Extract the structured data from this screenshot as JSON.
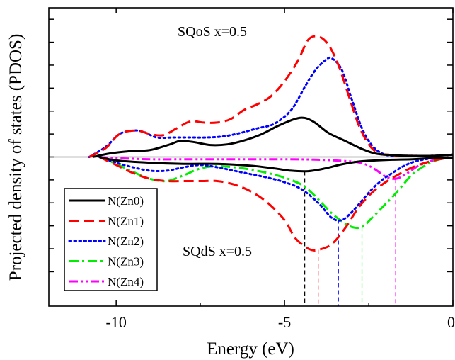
{
  "chart_data": {
    "type": "line",
    "xlabel": "Energy (eV)",
    "ylabel": "Projected density of states (PDOS)",
    "xlim": [
      -12,
      0
    ],
    "ylim": [
      -6.5,
      6.5
    ],
    "x_ticks": [
      -10,
      -5,
      0
    ],
    "x_tick_labels": [
      "-10",
      "-5",
      "0"
    ],
    "y_ticks": [
      -5,
      -4,
      -3,
      -2,
      -1,
      0,
      1,
      2,
      3,
      4,
      5,
      6
    ],
    "grid": false,
    "legend_position": "bottom-left",
    "annotations": [
      {
        "text": "SQoS x=0.5",
        "x": -6.7,
        "y": 5.1
      },
      {
        "text": "SQdS x=0.5",
        "x": -6.7,
        "y": -3.8
      }
    ],
    "series": [
      {
        "name": "N(Zn0)",
        "color": "#000000",
        "dash": "solid",
        "width": 3,
        "up": {
          "x": [
            -10.7,
            -10.2,
            -9.6,
            -9.0,
            -8.4,
            -8.1,
            -7.7,
            -7.2,
            -6.7,
            -6.2,
            -5.7,
            -5.2,
            -4.7,
            -4.4,
            -4.1,
            -3.7,
            -3.2,
            -2.7,
            -2.3,
            -1.8,
            -1.3,
            -0.6,
            0
          ],
          "y": [
            0.0,
            0.15,
            0.25,
            0.3,
            0.55,
            0.7,
            0.65,
            0.52,
            0.55,
            0.72,
            0.98,
            1.35,
            1.65,
            1.7,
            1.5,
            1.05,
            0.7,
            0.35,
            0.15,
            0.08,
            0.05,
            0.05,
            0.1
          ]
        },
        "down": {
          "x": [
            -10.5,
            -10.0,
            -9.0,
            -8.0,
            -7.0,
            -6.0,
            -5.3,
            -4.8,
            -4.3,
            -3.8,
            -3.3,
            -2.8,
            -2.3,
            -1.8,
            -1.2,
            -0.6,
            0
          ],
          "y": [
            0.0,
            -0.15,
            -0.25,
            -0.3,
            -0.3,
            -0.38,
            -0.5,
            -0.6,
            -0.62,
            -0.5,
            -0.32,
            -0.2,
            -0.15,
            -0.12,
            -0.1,
            -0.05,
            -0.05
          ]
        },
        "drop_x": -4.4
      },
      {
        "name": "N(Zn1)",
        "color": "#ff0000",
        "dash": "long-dash",
        "width": 3,
        "up": {
          "x": [
            -10.8,
            -10.3,
            -9.9,
            -9.4,
            -9.0,
            -8.6,
            -8.2,
            -7.8,
            -7.4,
            -7.0,
            -6.6,
            -6.2,
            -5.8,
            -5.4,
            -5.0,
            -4.6,
            -4.3,
            -4.0,
            -3.7,
            -3.4,
            -3.1,
            -2.8,
            -2.5,
            -2.2,
            -1.9,
            -1.6,
            -1.2,
            -0.6,
            0
          ],
          "y": [
            0.0,
            0.4,
            1.0,
            1.15,
            1.0,
            0.95,
            1.25,
            1.55,
            1.5,
            1.5,
            1.65,
            2.05,
            2.3,
            2.65,
            3.3,
            4.2,
            5.1,
            5.25,
            4.9,
            4.0,
            2.7,
            1.4,
            0.55,
            0.15,
            0.1,
            0.05,
            0.05,
            0.05,
            0.1
          ]
        },
        "down": {
          "x": [
            -10.5,
            -10.0,
            -9.5,
            -9.0,
            -8.5,
            -8.0,
            -7.5,
            -7.0,
            -6.5,
            -6.0,
            -5.5,
            -5.0,
            -4.7,
            -4.4,
            -4.2,
            -4.0,
            -3.6,
            -3.2,
            -2.8,
            -2.4,
            -2.0,
            -1.6,
            -1.2,
            -0.7,
            -0.2,
            0
          ],
          "y": [
            0.0,
            -0.35,
            -0.7,
            -0.95,
            -1.05,
            -1.05,
            -1.05,
            -1.05,
            -1.2,
            -1.5,
            -2.0,
            -2.75,
            -3.5,
            -3.9,
            -4.05,
            -4.05,
            -3.8,
            -3.1,
            -2.2,
            -1.55,
            -1.1,
            -0.75,
            -0.45,
            -0.2,
            -0.05,
            -0.05
          ]
        },
        "drop_x": -4.0
      },
      {
        "name": "N(Zn2)",
        "color": "#0000ff",
        "dash": "dotted",
        "width": 3,
        "up": {
          "x": [
            -10.8,
            -10.3,
            -9.9,
            -9.5,
            -9.2,
            -8.8,
            -8.3,
            -7.8,
            -7.3,
            -6.8,
            -6.3,
            -5.8,
            -5.3,
            -4.8,
            -4.4,
            -4.1,
            -3.8,
            -3.6,
            -3.3,
            -3.0,
            -2.7,
            -2.4,
            -2.1,
            -1.8,
            -1.3,
            -0.6,
            0
          ],
          "y": [
            0.0,
            0.45,
            1.0,
            1.15,
            1.1,
            0.85,
            0.85,
            0.85,
            0.85,
            0.9,
            1.05,
            1.25,
            1.45,
            2.05,
            3.05,
            3.75,
            4.2,
            4.3,
            3.8,
            2.5,
            1.25,
            0.5,
            0.15,
            0.05,
            0.05,
            0.05,
            0.1
          ]
        },
        "down": {
          "x": [
            -10.5,
            -10.0,
            -9.5,
            -9.0,
            -8.5,
            -8.0,
            -7.5,
            -7.0,
            -6.5,
            -6.0,
            -5.5,
            -5.0,
            -4.5,
            -4.0,
            -3.6,
            -3.3,
            -3.0,
            -2.7,
            -2.4,
            -2.1,
            -1.8,
            -1.4,
            -1.0,
            -0.5,
            0
          ],
          "y": [
            0.0,
            -0.25,
            -0.45,
            -0.6,
            -0.6,
            -0.45,
            -0.35,
            -0.45,
            -0.6,
            -0.75,
            -0.9,
            -1.1,
            -1.4,
            -2.0,
            -2.65,
            -2.75,
            -2.4,
            -1.9,
            -1.4,
            -1.0,
            -0.7,
            -0.35,
            -0.15,
            -0.05,
            -0.05
          ]
        },
        "drop_x": -3.4
      },
      {
        "name": "N(Zn3)",
        "color": "#00ee00",
        "dash": "dash-dot",
        "width": 3,
        "up": {
          "x": [],
          "y": []
        },
        "down": {
          "x": [
            -10.5,
            -10.0,
            -9.5,
            -9.0,
            -8.5,
            -8.0,
            -7.5,
            -7.0,
            -6.5,
            -6.0,
            -5.5,
            -5.0,
            -4.5,
            -4.2,
            -3.9,
            -3.6,
            -3.3,
            -3.0,
            -2.7,
            -2.4,
            -2.1,
            -1.8,
            -1.5,
            -1.2,
            -0.8,
            -0.4,
            0
          ],
          "y": [
            0.0,
            -0.3,
            -0.65,
            -0.95,
            -1.05,
            -0.8,
            -0.5,
            -0.4,
            -0.45,
            -0.55,
            -0.7,
            -0.9,
            -1.2,
            -1.55,
            -2.0,
            -2.45,
            -2.8,
            -3.05,
            -3.05,
            -2.65,
            -2.2,
            -1.75,
            -1.25,
            -0.75,
            -0.35,
            -0.1,
            -0.05
          ]
        },
        "drop_x": -2.7
      },
      {
        "name": "N(Zn4)",
        "color": "#ff00ff",
        "dash": "dash-dot-dot",
        "width": 3,
        "up": {
          "x": [],
          "y": []
        },
        "down": {
          "x": [
            -10.5,
            -10.0,
            -9.0,
            -8.0,
            -7.0,
            -6.0,
            -5.0,
            -4.0,
            -3.0,
            -2.6,
            -2.3,
            -2.0,
            -1.7,
            -1.4,
            -1.1,
            -0.8,
            -0.5,
            -0.2,
            0
          ],
          "y": [
            0.0,
            -0.05,
            -0.1,
            -0.1,
            -0.1,
            -0.1,
            -0.1,
            -0.12,
            -0.2,
            -0.32,
            -0.55,
            -0.85,
            -0.95,
            -0.75,
            -0.45,
            -0.25,
            -0.12,
            -0.05,
            -0.05
          ]
        },
        "drop_x": -1.7
      }
    ]
  }
}
